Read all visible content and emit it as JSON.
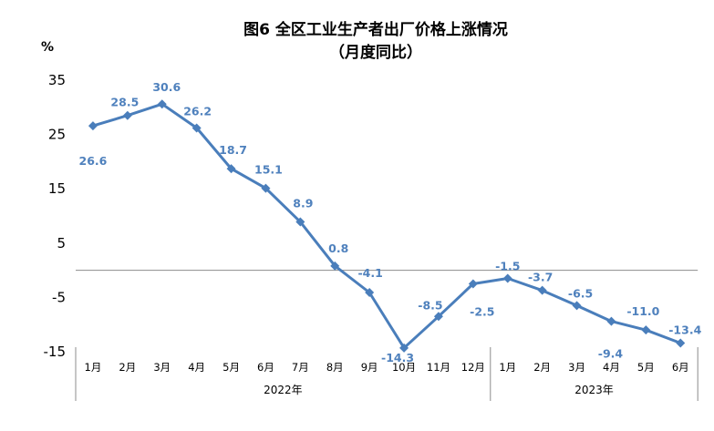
{
  "chart_data": {
    "type": "line",
    "title": "图6  全区工业生产者出厂价格上涨情况",
    "subtitle": "（月度同比）",
    "ylabel": "%",
    "ylim": [
      -15,
      35
    ],
    "yticks": [
      "35",
      "25",
      "15",
      "5",
      "-5",
      "-15"
    ],
    "ytick_values": [
      35,
      25,
      15,
      5,
      -5,
      -15
    ],
    "baseline": 0,
    "categories": [
      "1月",
      "2月",
      "3月",
      "4月",
      "5月",
      "6月",
      "7月",
      "8月",
      "9月",
      "10月",
      "11月",
      "12月",
      "1月",
      "2月",
      "3月",
      "4月",
      "5月",
      "6月"
    ],
    "year_groups": [
      {
        "label": "2022年",
        "count": 12
      },
      {
        "label": "2023年",
        "count": 6
      }
    ],
    "series": [
      {
        "values": [
          26.6,
          28.5,
          30.6,
          26.2,
          18.7,
          15.1,
          8.9,
          0.8,
          -4.1,
          -14.3,
          -8.5,
          -2.5,
          -1.5,
          -3.7,
          -6.5,
          -9.4,
          -11.0,
          -13.4
        ],
        "labels": [
          "26.6",
          "28.5",
          "30.6",
          "26.2",
          "18.7",
          "15.1",
          "8.9",
          "0.8",
          "-4.1",
          "-14.3",
          "-8.5",
          "-2.5",
          "-1.5",
          "-3.7",
          "-6.5",
          "-9.4",
          "-11.0",
          "-13.4"
        ]
      }
    ],
    "colors": {
      "line": "#4a7ebb",
      "labels": "#4f81bd",
      "axis": "#7f7f7f"
    },
    "grid": false,
    "marker": "diamond"
  }
}
